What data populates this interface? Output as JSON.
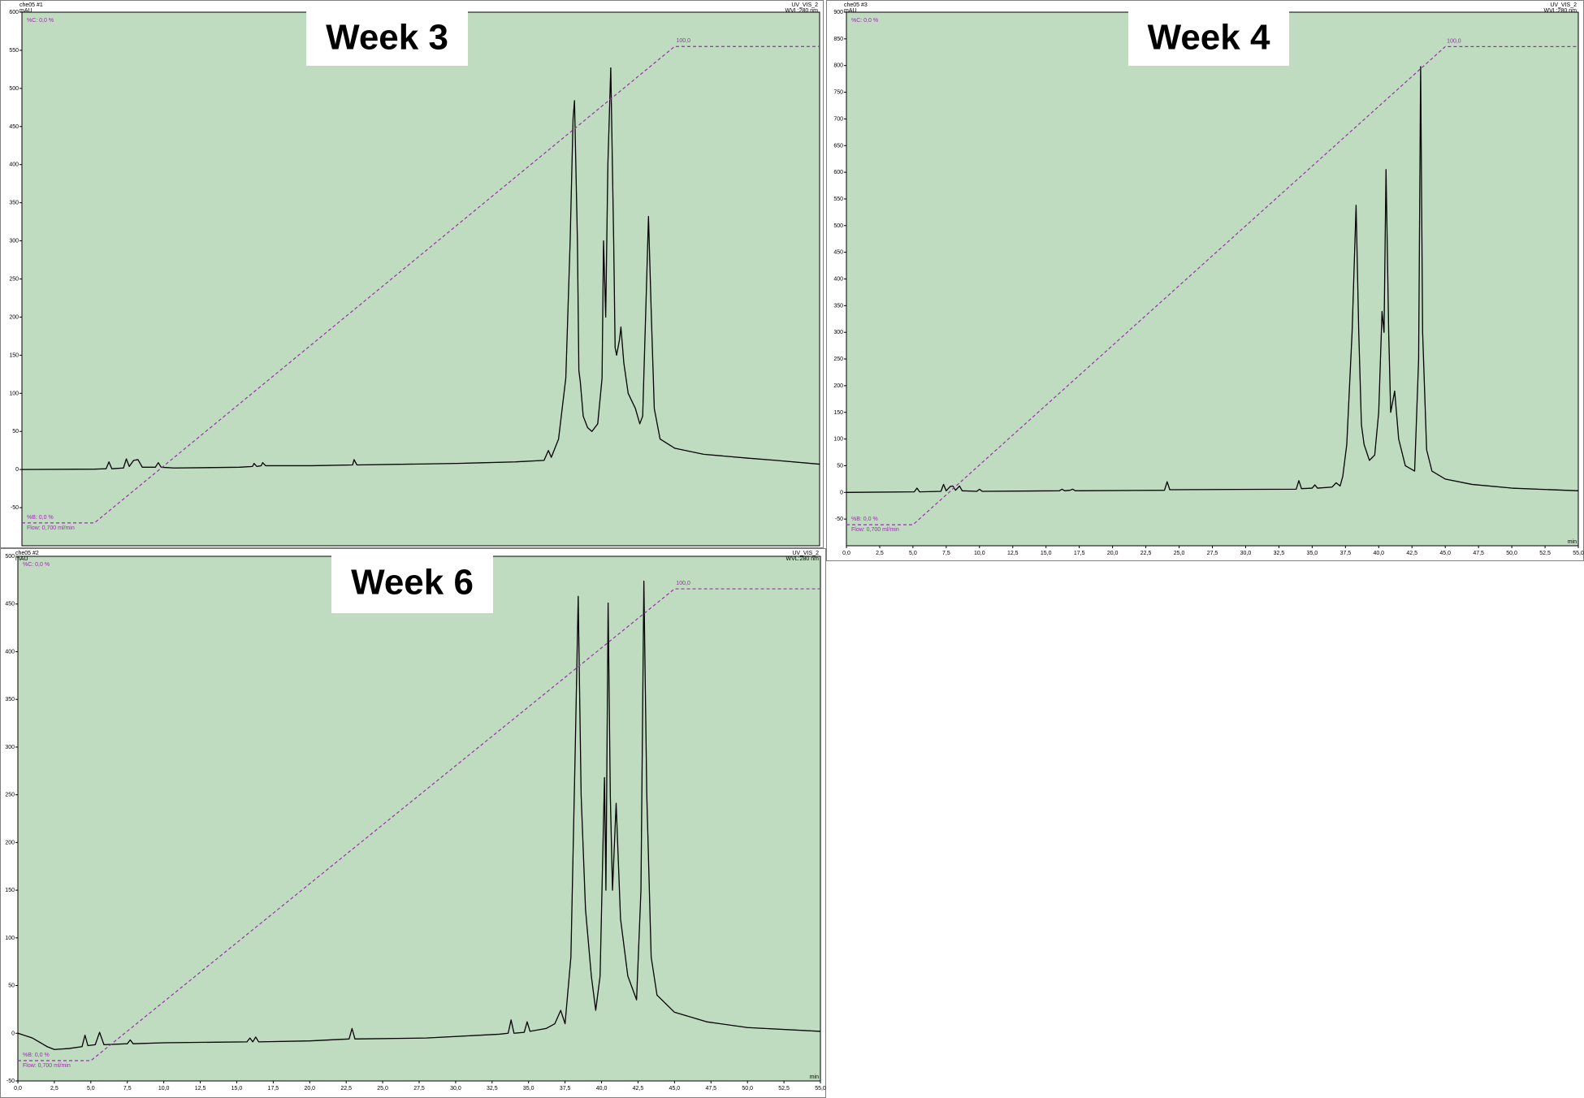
{
  "chart_data": [
    {
      "type": "line",
      "title": "Week 3",
      "sample": "che05 #1",
      "y_label": "mAU",
      "detector": "UV_VIS_2",
      "wavelength": "WVL:280 nm",
      "annotations": {
        "pct_c": "%C: 0,0 %",
        "pct_b": "%B: 0,0 %",
        "flow": "Flow: 0,700 ml/min",
        "gradient_end": "100,0"
      },
      "xlim": [
        0,
        55
      ],
      "ylim": [
        -100,
        600
      ],
      "y2lim": [
        -4.8,
        107.2
      ],
      "yticks": [
        -50,
        0,
        50,
        100,
        150,
        200,
        250,
        300,
        350,
        400,
        450,
        500,
        550,
        600
      ],
      "series": [
        {
          "color": "#000000",
          "x": [
            0,
            5,
            5.8,
            6.0,
            6.2,
            7.0,
            7.2,
            7.4,
            7.7,
            8.0,
            8.3,
            9.2,
            9.4,
            9.6,
            10.5,
            15,
            15.9,
            16.0,
            16.2,
            16.5,
            16.6,
            16.8,
            20,
            22.8,
            22.9,
            23.1,
            30,
            32,
            34,
            36,
            36.3,
            36.5,
            37,
            37.5,
            37.8,
            38.0,
            38.1,
            38.3,
            38.4,
            38.5,
            38.7,
            39.0,
            39.3,
            39.7,
            40.0,
            40.1,
            40.25,
            40.4,
            40.6,
            40.8,
            40.9,
            41.0,
            41.2,
            41.3,
            41.5,
            41.8,
            42.3,
            42.6,
            42.8,
            43.0,
            43.2,
            43.4,
            43.6,
            44,
            45,
            47,
            50,
            52,
            55
          ],
          "values": [
            0,
            0.5,
            1,
            10,
            1,
            2,
            14,
            4,
            12,
            13,
            3,
            3,
            9,
            3,
            2,
            3,
            4,
            8,
            4,
            5,
            9,
            5,
            5,
            6,
            13,
            6,
            8,
            9,
            10,
            12,
            25,
            16,
            40,
            120,
            300,
            460,
            484,
            300,
            130,
            115,
            70,
            55,
            50,
            60,
            120,
            300,
            200,
            400,
            527,
            300,
            160,
            150,
            170,
            187,
            140,
            100,
            80,
            60,
            70,
            200,
            332,
            200,
            80,
            40,
            28,
            20,
            15,
            12,
            7
          ]
        },
        {
          "color": "#9b2fae",
          "axis": "y2",
          "dash": true,
          "x": [
            0,
            5,
            45,
            55
          ],
          "values": [
            0,
            0,
            100,
            100
          ]
        }
      ]
    },
    {
      "type": "line",
      "title": "Week 4",
      "sample": "che05 #3",
      "y_label": "mAU",
      "x_label": "min",
      "detector": "UV_VIS_2",
      "wavelength": "WVL:280 nm",
      "annotations": {
        "pct_c": "%C: 0,0 %",
        "pct_b": "%B: 0,0 %",
        "flow": "Flow: 0,700 ml/min",
        "gradient_end": "100,0"
      },
      "xlim": [
        0,
        55
      ],
      "ylim": [
        -100,
        900
      ],
      "y2lim": [
        -4.4,
        107.2
      ],
      "yticks": [
        -50,
        0,
        50,
        100,
        150,
        200,
        250,
        300,
        350,
        400,
        450,
        500,
        550,
        600,
        650,
        700,
        750,
        800,
        850,
        900
      ],
      "xticks": [
        {
          "value": 0,
          "label": "0,0"
        },
        {
          "value": 2.5,
          "label": "2,5"
        },
        {
          "value": 5,
          "label": "5,0"
        },
        {
          "value": 7.5,
          "label": "7,5"
        },
        {
          "value": 10,
          "label": "10,0"
        },
        {
          "value": 12.5,
          "label": "12,5"
        },
        {
          "value": 15,
          "label": "15,0"
        },
        {
          "value": 17.5,
          "label": "17,5"
        },
        {
          "value": 20,
          "label": "20,0"
        },
        {
          "value": 22.5,
          "label": "22,5"
        },
        {
          "value": 25,
          "label": "25,0"
        },
        {
          "value": 27.5,
          "label": "27,5"
        },
        {
          "value": 30,
          "label": "30,0"
        },
        {
          "value": 32.5,
          "label": "32,5"
        },
        {
          "value": 35,
          "label": "35,0"
        },
        {
          "value": 37.5,
          "label": "37,5"
        },
        {
          "value": 40,
          "label": "40,0"
        },
        {
          "value": 42.5,
          "label": "42,5"
        },
        {
          "value": 45,
          "label": "45,0"
        },
        {
          "value": 47.5,
          "label": "47,5"
        },
        {
          "value": 50,
          "label": "50,0"
        },
        {
          "value": 52.5,
          "label": "52,5"
        },
        {
          "value": 55,
          "label": "55,0"
        }
      ],
      "series": [
        {
          "color": "#000000",
          "x": [
            0,
            5.1,
            5.3,
            5.5,
            7.1,
            7.3,
            7.5,
            7.8,
            8.0,
            8.2,
            8.5,
            8.7,
            9.8,
            10.0,
            10.2,
            16.0,
            16.2,
            16.4,
            16.8,
            17.0,
            17.2,
            23.9,
            24.1,
            24.3,
            33.8,
            34.0,
            34.2,
            35.0,
            35.2,
            35.4,
            36.5,
            36.8,
            37.1,
            37.3,
            37.6,
            38.0,
            38.3,
            38.5,
            38.7,
            38.9,
            39.3,
            39.7,
            40.0,
            40.25,
            40.4,
            40.55,
            40.75,
            40.9,
            41.2,
            41.5,
            42.0,
            42.7,
            43.0,
            43.15,
            43.3,
            43.6,
            44.0,
            45.0,
            47.0,
            50.0,
            55.0
          ],
          "values": [
            0,
            1,
            8,
            1,
            2,
            15,
            3,
            11,
            12,
            4,
            12,
            3,
            2,
            6,
            2,
            3,
            6,
            3,
            4,
            6,
            3,
            4,
            20,
            5,
            6,
            22,
            7,
            8,
            14,
            8,
            10,
            18,
            12,
            30,
            90,
            300,
            538,
            300,
            127,
            90,
            60,
            70,
            150,
            339,
            300,
            605,
            300,
            150,
            190,
            100,
            50,
            40,
            250,
            798,
            300,
            80,
            40,
            25,
            15,
            8,
            3
          ]
        },
        {
          "color": "#9b2fae",
          "axis": "y2",
          "dash": true,
          "x": [
            0,
            5,
            45,
            55
          ],
          "values": [
            0,
            0,
            100,
            100
          ]
        }
      ]
    },
    {
      "type": "line",
      "title": "Week 6",
      "sample": "che05 #2",
      "y_label": "mAU",
      "x_label": "min",
      "detector": "UV_VIS_2",
      "wavelength": "WVL:280 nm",
      "annotations": {
        "pct_c": "%C: 0,0 %",
        "pct_b": "%B: 0,0 %",
        "flow": "Flow: 0,700 ml/min",
        "gradient_end": "100,0"
      },
      "xlim": [
        0,
        55
      ],
      "ylim": [
        -50,
        500
      ],
      "y2lim": [
        -4.3,
        106.9
      ],
      "yticks": [
        -50,
        0,
        50,
        100,
        150,
        200,
        250,
        300,
        350,
        400,
        450,
        500
      ],
      "xticks": [
        {
          "value": 0,
          "label": "0,0"
        },
        {
          "value": 2.5,
          "label": "2,5"
        },
        {
          "value": 5,
          "label": "5,0"
        },
        {
          "value": 7.5,
          "label": "7,5"
        },
        {
          "value": 10,
          "label": "10,0"
        },
        {
          "value": 12.5,
          "label": "12,5"
        },
        {
          "value": 15,
          "label": "15,0"
        },
        {
          "value": 17.5,
          "label": "17,5"
        },
        {
          "value": 20,
          "label": "20,0"
        },
        {
          "value": 22.5,
          "label": "22,5"
        },
        {
          "value": 25,
          "label": "25,0"
        },
        {
          "value": 27.5,
          "label": "27,5"
        },
        {
          "value": 30,
          "label": "30,0"
        },
        {
          "value": 32.5,
          "label": "32,5"
        },
        {
          "value": 35,
          "label": "35,0"
        },
        {
          "value": 37.5,
          "label": "37,5"
        },
        {
          "value": 40,
          "label": "40,0"
        },
        {
          "value": 42.5,
          "label": "42,5"
        },
        {
          "value": 45,
          "label": "45,0"
        },
        {
          "value": 47.5,
          "label": "47,5"
        },
        {
          "value": 50,
          "label": "50,0"
        },
        {
          "value": 52.5,
          "label": "52,5"
        },
        {
          "value": 55,
          "label": "55,0"
        }
      ],
      "series": [
        {
          "color": "#000000",
          "x": [
            0,
            1.0,
            2.0,
            2.5,
            3.5,
            4.4,
            4.6,
            4.8,
            5.3,
            5.6,
            5.9,
            7.5,
            7.7,
            7.9,
            10,
            15.7,
            15.9,
            16.1,
            16.3,
            16.5,
            20,
            22.7,
            22.9,
            23.1,
            28,
            33.0,
            33.6,
            33.8,
            34.0,
            34.7,
            34.9,
            35.1,
            36.2,
            36.8,
            37.2,
            37.5,
            37.9,
            38.2,
            38.4,
            38.6,
            38.9,
            39.3,
            39.6,
            39.9,
            40.2,
            40.3,
            40.45,
            40.6,
            40.75,
            41.0,
            41.3,
            41.8,
            42.4,
            42.7,
            42.9,
            43.1,
            43.4,
            43.8,
            45.0,
            47.2,
            50,
            55
          ],
          "values": [
            0,
            -5,
            -14,
            -17,
            -16,
            -14,
            -2,
            -13,
            -12,
            1,
            -12,
            -11,
            -7,
            -11,
            -10,
            -9,
            -5,
            -9,
            -4,
            -9,
            -8,
            -6,
            5,
            -6,
            -5,
            -1,
            0,
            14,
            0,
            1,
            12,
            2,
            5,
            10,
            24,
            10,
            80,
            300,
            458,
            250,
            130,
            60,
            24,
            60,
            268,
            150,
            451,
            250,
            150,
            241,
            120,
            60,
            35,
            150,
            474,
            250,
            80,
            40,
            22,
            12,
            6,
            2
          ]
        },
        {
          "color": "#9b2fae",
          "axis": "y2",
          "dash": true,
          "x": [
            0,
            5,
            45,
            55
          ],
          "values": [
            0,
            0,
            100,
            100
          ]
        }
      ]
    }
  ]
}
